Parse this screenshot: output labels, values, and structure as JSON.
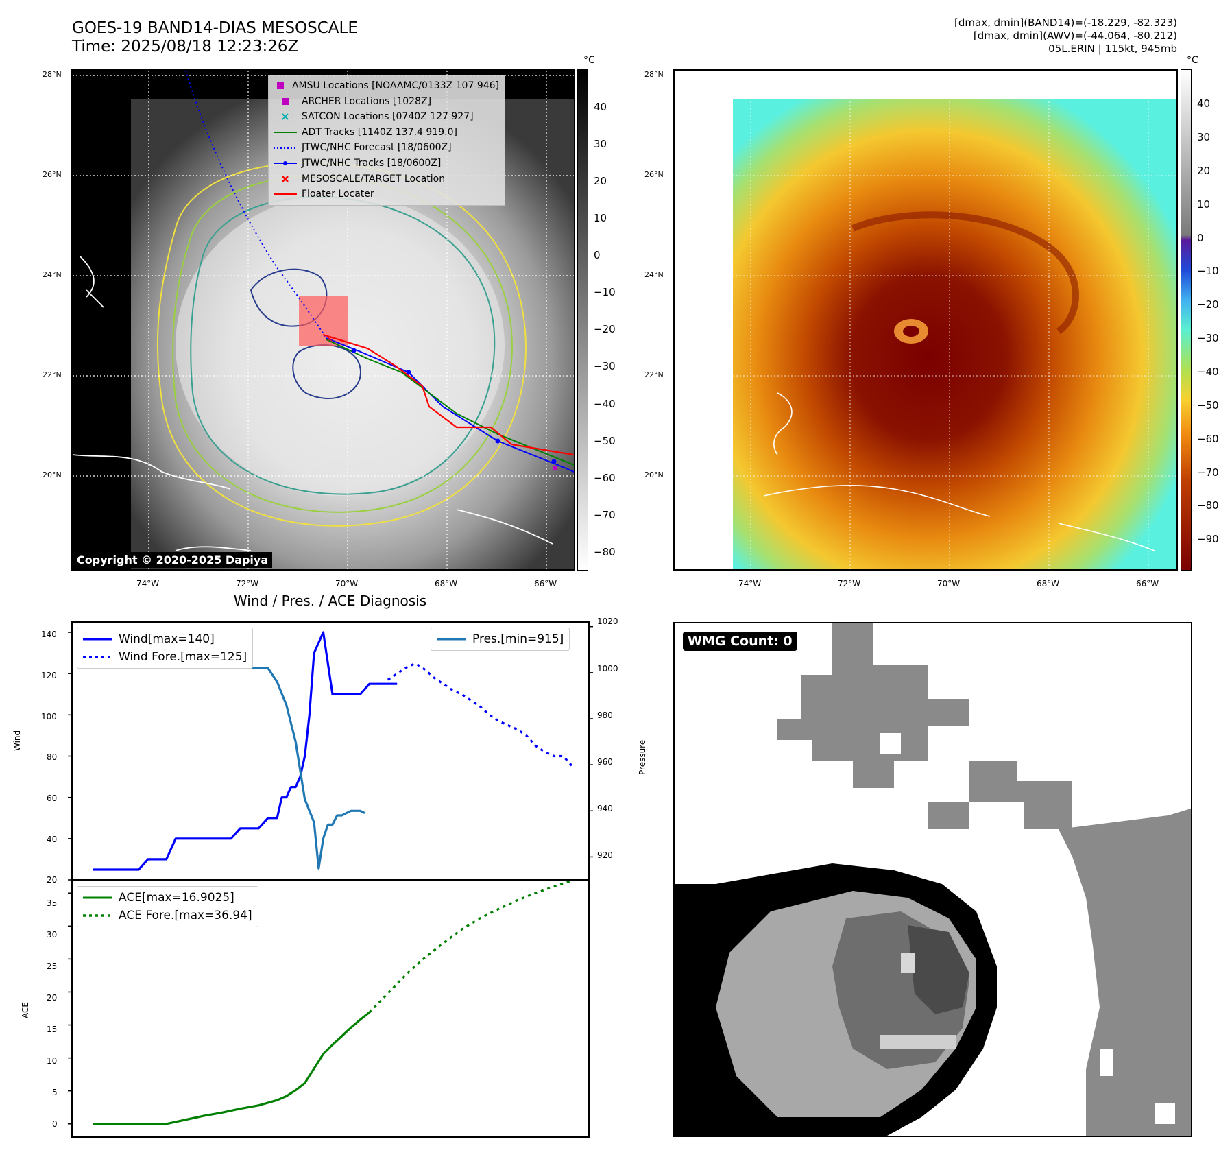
{
  "header": {
    "title_line1": "GOES-19 BAND14-DIAS MESOSCALE",
    "title_line2": "Time: 2025/08/18 12:23:26Z",
    "info_line1": "[dmax, dmin](BAND14)=(-18.229, -82.323)",
    "info_line2": "[dmax, dmin](AWV)=(-44.064, -80.212)",
    "info_line3": "05L.ERIN | 115kt, 945mb"
  },
  "map_axes": {
    "lat_labels": [
      "28°N",
      "26°N",
      "24°N",
      "22°N",
      "20°N"
    ],
    "lon_labels": [
      "74°W",
      "72°W",
      "70°W",
      "68°W",
      "66°W"
    ]
  },
  "left_map": {
    "colorbar_unit": "°C",
    "colorbar_ticks": [
      "40",
      "30",
      "20",
      "10",
      "0",
      "−10",
      "−20",
      "−30",
      "−40",
      "−50",
      "−60",
      "−70",
      "−80"
    ],
    "copyright": "Copyright © 2020-2025 Dapiya",
    "legend": [
      {
        "label": "AMSU Locations [NOAAMC/0133Z 107 946]",
        "symbol": "square",
        "color": "#c000c0"
      },
      {
        "label": "ARCHER Locations [1028Z]",
        "symbol": "square",
        "color": "#c000c0"
      },
      {
        "label": "SATCON Locations [0740Z 127 927]",
        "symbol": "x",
        "color": "#00b0b0"
      },
      {
        "label": "ADT Tracks [1140Z 137.4 919.0]",
        "symbol": "line",
        "color": "#008000"
      },
      {
        "label": "JTWC/NHC Forecast [18/0600Z]",
        "symbol": "dotted",
        "color": "#0000ff"
      },
      {
        "label": "JTWC/NHC Tracks [18/0600Z]",
        "symbol": "line-dot",
        "color": "#0000ff"
      },
      {
        "label": "MESOSCALE/TARGET Location",
        "symbol": "x",
        "color": "#ff0000"
      },
      {
        "label": "Floater Locater",
        "symbol": "line",
        "color": "#ff0000"
      }
    ]
  },
  "right_map": {
    "colorbar_unit": "°C",
    "colorbar_ticks": [
      "40",
      "30",
      "20",
      "10",
      "0",
      "−10",
      "−20",
      "−30",
      "−40",
      "−50",
      "−60",
      "−70",
      "−80",
      "−90"
    ]
  },
  "diagnosis": {
    "title": "Wind / Pres. / ACE Diagnosis",
    "wind_ylabel": "Wind",
    "pres_ylabel": "Pressure",
    "ace_ylabel": "ACE",
    "wind_ticks": [
      "140",
      "120",
      "100",
      "80",
      "60",
      "40",
      "20"
    ],
    "pres_ticks": [
      "1020",
      "1000",
      "980",
      "960",
      "940",
      "920"
    ],
    "ace_ticks": [
      "35",
      "30",
      "25",
      "20",
      "15",
      "10",
      "5",
      "0"
    ],
    "legend_wind": "Wind[max=140]",
    "legend_wind_fore": "Wind Fore.[max=125]",
    "legend_pres": "Pres.[min=915]",
    "legend_ace": "ACE[max=16.9025]",
    "legend_ace_fore": "ACE Fore.[max=36.94]"
  },
  "wmg": {
    "label": "WMG Count: 0"
  },
  "chart_data": [
    {
      "type": "line",
      "title": "Wind / Pres. / ACE Diagnosis",
      "ylabel": "Wind",
      "ylim": [
        20,
        145
      ],
      "series": [
        {
          "name": "Wind[max=140]",
          "color": "#0000ff",
          "style": "solid",
          "x": [
            0,
            2,
            4,
            6,
            8,
            10,
            12,
            14,
            16,
            18,
            20,
            22,
            24,
            26,
            28,
            30,
            32,
            34,
            36,
            38,
            40,
            41,
            42,
            43,
            44,
            45,
            46,
            47,
            48,
            50,
            52,
            54,
            56,
            58,
            60,
            62,
            64,
            66
          ],
          "y": [
            25,
            25,
            25,
            25,
            25,
            25,
            30,
            30,
            30,
            40,
            40,
            40,
            40,
            40,
            40,
            40,
            45,
            45,
            45,
            50,
            50,
            60,
            60,
            65,
            65,
            70,
            80,
            100,
            130,
            140,
            110,
            110,
            110,
            110,
            115,
            115,
            115,
            115
          ]
        },
        {
          "name": "Wind Fore.[max=125]",
          "color": "#0000ff",
          "style": "dotted",
          "x": [
            64,
            66,
            68,
            70,
            72,
            74,
            76,
            78,
            80,
            82,
            84,
            86,
            88,
            90,
            92,
            94,
            96,
            98,
            100,
            102,
            104
          ],
          "y": [
            117,
            120,
            123,
            125,
            122,
            118,
            115,
            112,
            110,
            107,
            104,
            100,
            97,
            95,
            93,
            90,
            85,
            82,
            80,
            80,
            75
          ]
        },
        {
          "name": "Pres.[min=915]",
          "color": "#1f77b4",
          "style": "solid",
          "axis": "pressure",
          "ylim": [
            910,
            1020
          ],
          "x": [
            0,
            2,
            4,
            6,
            8,
            10,
            12,
            14,
            16,
            18,
            20,
            22,
            24,
            26,
            28,
            30,
            32,
            34,
            36,
            38,
            40,
            42,
            44,
            46,
            48,
            49,
            50,
            51,
            52,
            53,
            54,
            56,
            58,
            59
          ],
          "y": [
            1015,
            1015,
            1009,
            1008,
            1008,
            1008,
            1008,
            1007,
            1007,
            1008,
            1008,
            1006,
            1006,
            1006,
            1006,
            1006,
            1003,
            1002,
            1002,
            1002,
            996,
            986,
            970,
            945,
            935,
            915,
            928,
            934,
            934,
            938,
            938,
            940,
            940,
            939
          ]
        }
      ]
    },
    {
      "type": "line",
      "ylabel": "ACE",
      "ylim": [
        -2,
        37
      ],
      "series": [
        {
          "name": "ACE[max=16.9025]",
          "color": "#008000",
          "style": "solid",
          "x": [
            0,
            4,
            8,
            12,
            16,
            20,
            24,
            28,
            32,
            36,
            40,
            42,
            44,
            46,
            48,
            50,
            52,
            54,
            56,
            58,
            60
          ],
          "y": [
            0,
            0,
            0,
            0,
            0,
            0.6,
            1.2,
            1.7,
            2.3,
            2.8,
            3.6,
            4.2,
            5.1,
            6.2,
            8.4,
            10.6,
            12.0,
            13.3,
            14.6,
            15.8,
            16.9
          ]
        },
        {
          "name": "ACE Fore.[max=36.94]",
          "color": "#008000",
          "style": "dotted",
          "x": [
            60,
            64,
            68,
            72,
            76,
            80,
            84,
            88,
            92,
            96,
            100,
            104
          ],
          "y": [
            16.9,
            19.8,
            22.7,
            25.2,
            27.4,
            29.5,
            31.2,
            32.6,
            33.9,
            35.0,
            36.0,
            36.9
          ]
        }
      ]
    }
  ]
}
